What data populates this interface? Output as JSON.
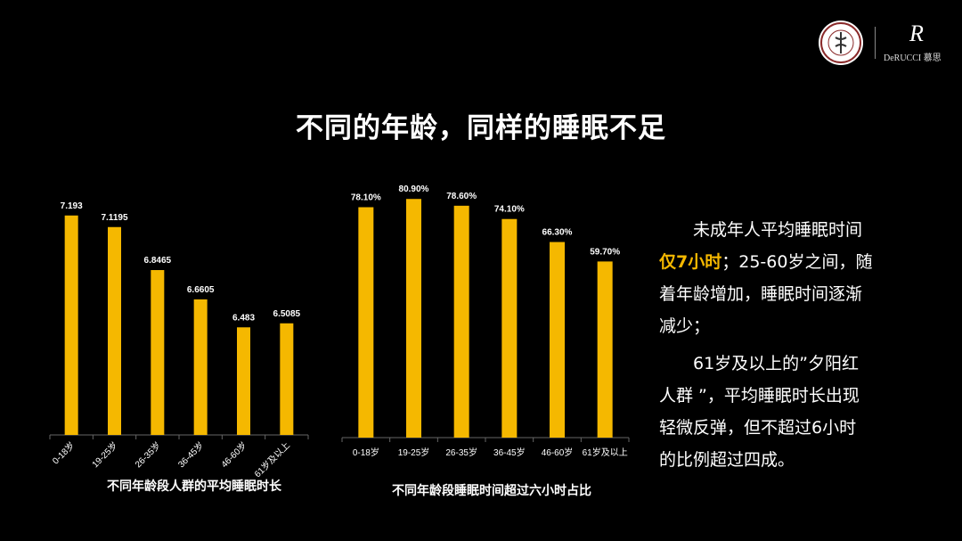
{
  "title": "不同的年龄，同样的睡眠不足",
  "brand": {
    "seal_text": "中国睡眠研究会",
    "seal_subtext": "China Sleep Research Society",
    "mark": "R",
    "name": "DeRUCCI 慕思"
  },
  "colors": {
    "bar": "#F5B800",
    "background": "#000000",
    "axis": "#666666"
  },
  "side_text": {
    "p1_a": "未成年人平均睡眠时间",
    "p1_hl": "仅7小时",
    "p1_b": "；25-60岁之间，随着年龄增加，睡眠时间逐渐减少；",
    "p2": "61岁及以上的”夕阳红人群 ”，平均睡眠时长出现轻微反弹，但不超过6小时的比例超过四成。"
  },
  "chart_data": [
    {
      "type": "bar",
      "title": "不同年龄段人群的平均睡眠时长",
      "categories": [
        "0-18岁",
        "19-25岁",
        "26-35岁",
        "36-45岁",
        "46-60岁",
        "61岁及以上"
      ],
      "values": [
        7.193,
        7.1195,
        6.8465,
        6.6605,
        6.483,
        6.5085
      ],
      "value_labels": [
        "7.193",
        "7.1195",
        "6.8465",
        "6.6605",
        "6.483",
        "6.5085"
      ],
      "ylim": [
        5.8,
        7.22
      ],
      "xlabel": "",
      "ylabel": "",
      "grid": false,
      "legend": "none",
      "tick_rotation": -45
    },
    {
      "type": "bar",
      "title": "不同年龄段睡眠时间超过六小时占比",
      "categories": [
        "0-18岁",
        "19-25岁",
        "26-35岁",
        "36-45岁",
        "46-60岁",
        "61岁及以上"
      ],
      "values": [
        78.1,
        80.9,
        78.6,
        74.1,
        66.3,
        59.7
      ],
      "value_labels": [
        "78.10%",
        "80.90%",
        "78.60%",
        "74.10%",
        "66.30%",
        "59.70%"
      ],
      "ylim": [
        0,
        100
      ],
      "xlabel": "",
      "ylabel": "",
      "grid": false,
      "legend": "none",
      "tick_rotation": 0
    }
  ]
}
